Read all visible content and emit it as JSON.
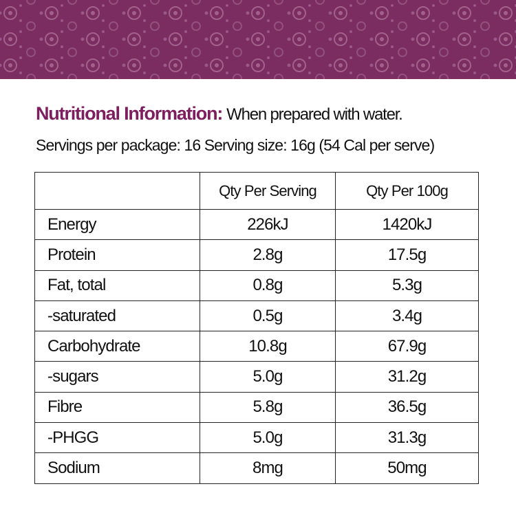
{
  "header": {
    "title": "Nutritional Information:",
    "note": "When prepared with water.",
    "servings": "Servings per package: 16 Serving size: 16g (54 Cal per serve)"
  },
  "table": {
    "columns": [
      "Qty Per Serving",
      "Qty Per 100g"
    ],
    "rows": [
      [
        "Energy",
        "226kJ",
        "1420kJ"
      ],
      [
        "Protein",
        "2.8g",
        "17.5g"
      ],
      [
        "Fat, total",
        "0.8g",
        "5.3g"
      ],
      [
        "-saturated",
        "0.5g",
        "3.4g"
      ],
      [
        "Carbohydrate",
        "10.8g",
        "67.9g"
      ],
      [
        "-sugars",
        "5.0g",
        "31.2g"
      ],
      [
        "Fibre",
        "5.8g",
        "36.5g"
      ],
      [
        "-PHGG",
        "5.0g",
        "31.3g"
      ],
      [
        "Sodium",
        "8mg",
        "50mg"
      ]
    ]
  }
}
